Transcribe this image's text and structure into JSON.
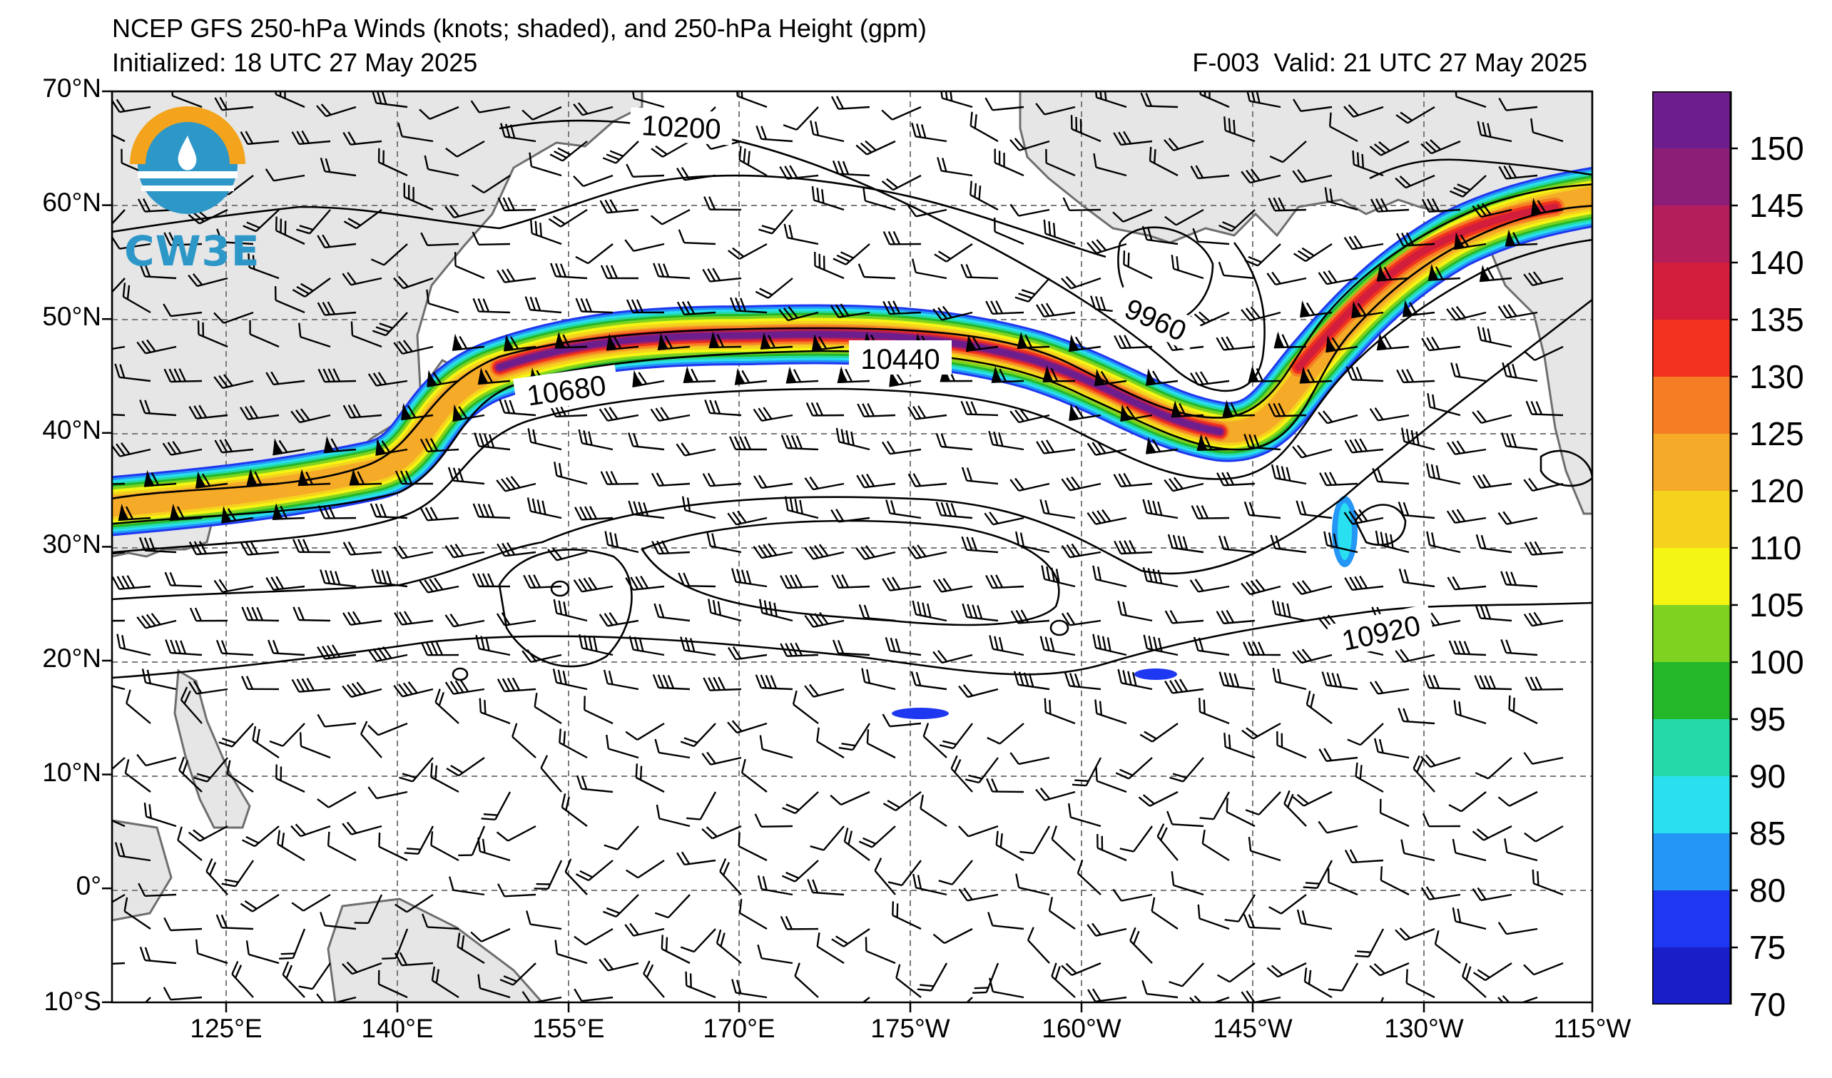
{
  "header": {
    "title": "NCEP GFS 250-hPa Winds (knots; shaded), and 250-hPa Height (gpm)",
    "initialized": "Initialized: 18 UTC 27 May 2025",
    "forecast": "F-003",
    "valid": "Valid: 21 UTC 27 May 2025"
  },
  "logo": {
    "text": "CW3E"
  },
  "map": {
    "projection": "cylindrical",
    "lon_range_deg_east": [
      112,
      245
    ],
    "lat_range": [
      -10,
      70
    ],
    "lat_labels": [
      "70°N",
      "60°N",
      "50°N",
      "40°N",
      "30°N",
      "20°N",
      "10°N",
      "0°",
      "10°S"
    ],
    "lon_labels": [
      "125°E",
      "140°E",
      "155°E",
      "170°E",
      "175°W",
      "160°W",
      "145°W",
      "130°W",
      "115°W"
    ],
    "contour_labels": [
      "10200",
      "9960",
      "10440",
      "10680",
      "10920"
    ],
    "colors": {
      "land": "#e6e6e6",
      "coast": "#6e6e6e",
      "grid": "#7a7a7a",
      "contour": "#000000"
    }
  },
  "colorbar": {
    "levels": [
      "70",
      "75",
      "80",
      "85",
      "90",
      "95",
      "100",
      "105",
      "110",
      "120",
      "125",
      "130",
      "135",
      "140",
      "145",
      "150"
    ],
    "colors": [
      "#1a1ec8",
      "#1e37f0",
      "#2496f5",
      "#28e0f0",
      "#26d9a8",
      "#22b82a",
      "#7ed321",
      "#f5f514",
      "#f5d21e",
      "#f5aa28",
      "#f57d23",
      "#f0321e",
      "#d21e3c",
      "#b41e5a",
      "#8c1e78",
      "#6e1e8c"
    ]
  }
}
